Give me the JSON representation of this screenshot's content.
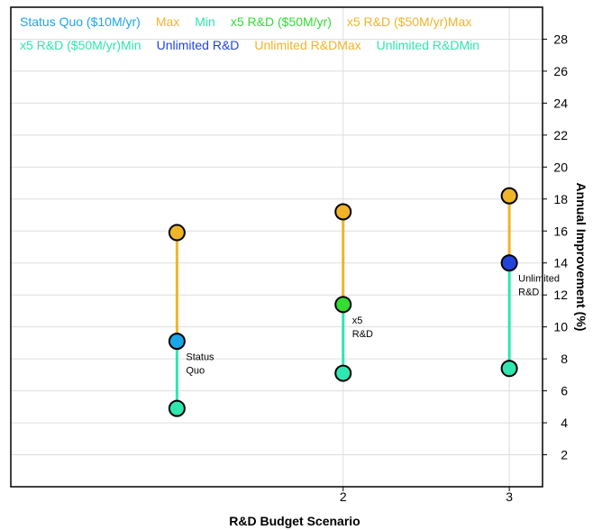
{
  "chart_data": {
    "type": "scatter",
    "xlabel": "R&D Budget Scenario",
    "ylabel": "Annual Improvement (%)",
    "xlim": [
      0,
      3.2
    ],
    "ylim": [
      0,
      30
    ],
    "x_ticks": [
      2,
      3
    ],
    "y_ticks": [
      2,
      4,
      6,
      8,
      10,
      12,
      14,
      16,
      18,
      20,
      22,
      24,
      26,
      28
    ],
    "grid": true,
    "legend_position": "top",
    "line_colors": {
      "upper": "#f0b429",
      "lower": "#2ee6b0"
    },
    "legend": [
      {
        "name": "Status Quo ($10M/yr)",
        "color": "#1aa7e8"
      },
      {
        "name": "Max",
        "color": "#f0b429"
      },
      {
        "name": "Min",
        "color": "#2ee6b0"
      },
      {
        "name": "x5 R&D ($50M/yr)",
        "color": "#33dd33"
      },
      {
        "name": "x5 R&D ($50M/yr)Max",
        "color": "#f0b429"
      },
      {
        "name": "x5 R&D ($50M/yr)Min",
        "color": "#2ee6b0"
      },
      {
        "name": "Unlimited R&D",
        "color": "#2244dd"
      },
      {
        "name": "Unlimited R&DMax",
        "color": "#f0b429"
      },
      {
        "name": "Unlimited R&DMin",
        "color": "#2ee6b0"
      }
    ],
    "series": [
      {
        "x": 1,
        "mid": 9.1,
        "max": 15.9,
        "min": 4.9,
        "label": [
          "Status",
          "Quo"
        ],
        "color": "#1aa7e8",
        "max_color": "#f0b429",
        "min_color": "#2ee6b0"
      },
      {
        "x": 2,
        "mid": 11.4,
        "max": 17.2,
        "min": 7.1,
        "label": [
          "x5",
          "R&D"
        ],
        "color": "#33dd33",
        "max_color": "#f0b429",
        "min_color": "#2ee6b0"
      },
      {
        "x": 3,
        "mid": 14.0,
        "max": 18.2,
        "min": 7.4,
        "label": [
          "Unlimited",
          "R&D"
        ],
        "color": "#2244dd",
        "max_color": "#f0b429",
        "min_color": "#2ee6b0"
      }
    ]
  }
}
